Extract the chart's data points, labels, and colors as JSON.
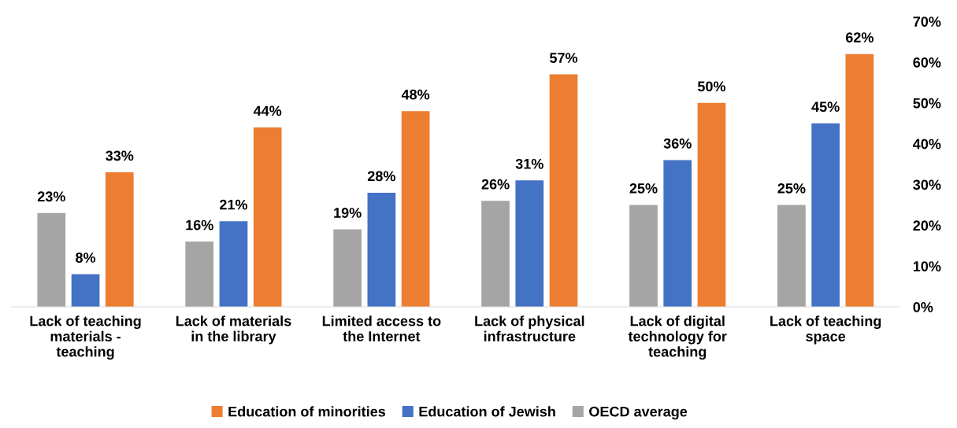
{
  "chart_data": {
    "type": "bar",
    "categories": [
      "Lack of teaching materials - teaching",
      "Lack of materials in the library",
      "Limited access to the Internet",
      "Lack of physical infrastructure",
      "Lack of digital technology for teaching",
      "Lack of teaching space"
    ],
    "series": [
      {
        "name": "OECD average",
        "color": "#a5a5a5",
        "values": [
          23,
          16,
          19,
          26,
          25,
          25
        ],
        "value_labels": [
          "23%",
          "16%",
          "19%",
          "26%",
          "25%",
          "25%"
        ]
      },
      {
        "name": "Education of Jewish",
        "color": "#4472c4",
        "values": [
          8,
          21,
          28,
          31,
          36,
          45
        ],
        "value_labels": [
          "8%",
          "21%",
          "28%",
          "31%",
          "36%",
          "45%"
        ]
      },
      {
        "name": "Education of minorities",
        "color": "#ed7d31",
        "values": [
          33,
          44,
          48,
          57,
          50,
          62
        ],
        "value_labels": [
          "33%",
          "44%",
          "48%",
          "57%",
          "50%",
          "62%"
        ]
      }
    ],
    "ylim": [
      0,
      70
    ],
    "yticks": [
      {
        "value": 0,
        "label": "0%"
      },
      {
        "value": 10,
        "label": "10%"
      },
      {
        "value": 20,
        "label": "20%"
      },
      {
        "value": 30,
        "label": "30%"
      },
      {
        "value": 40,
        "label": "40%"
      },
      {
        "value": 50,
        "label": "50%"
      },
      {
        "value": 60,
        "label": "60%"
      },
      {
        "value": 70,
        "label": "70%"
      }
    ],
    "grid": false,
    "legend": "bottom"
  }
}
